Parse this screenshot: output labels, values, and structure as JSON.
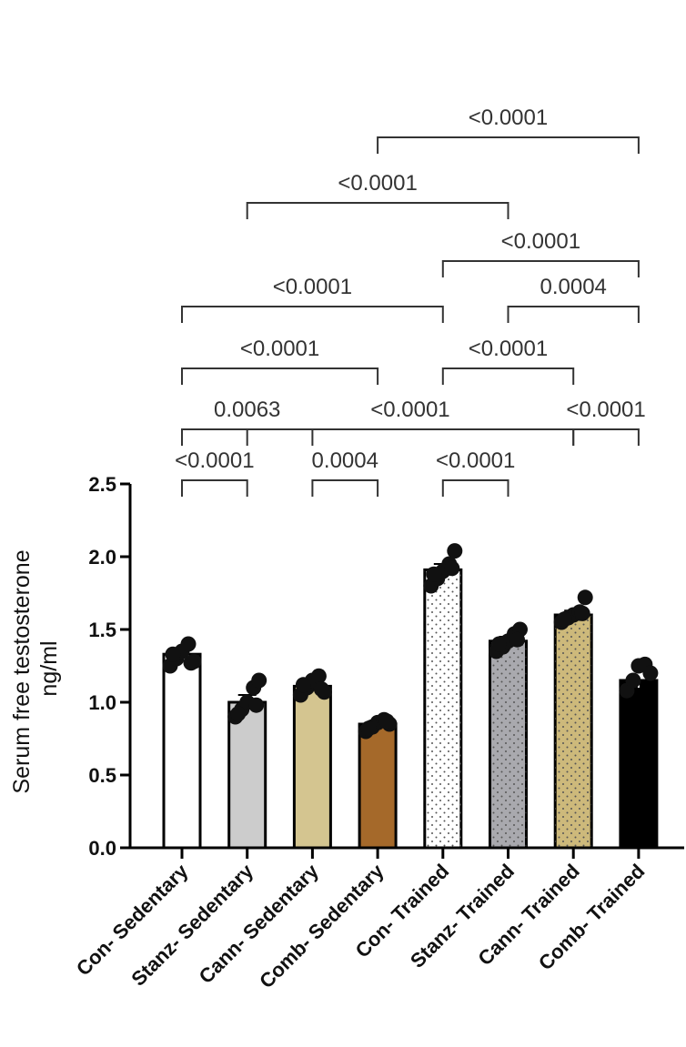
{
  "chart_data": {
    "type": "bar",
    "title": "",
    "ylabel": "Serum free testosterone\nng/ml",
    "xlabel": "",
    "ylim": [
      0,
      2.5
    ],
    "yticks": [
      "0.0",
      "0.5",
      "1.0",
      "1.5",
      "2.0",
      "2.5"
    ],
    "yticks_values": [
      0,
      0.5,
      1.0,
      1.5,
      2.0,
      2.5
    ],
    "categories": [
      "Con- Sedentary",
      "Stanz- Sedentary",
      "Cann- Sedentary",
      "Comb- Sedentary",
      "Con- Trained",
      "Stanz- Trained",
      "Cann- Trained",
      "Comb- Trained"
    ],
    "values": [
      1.33,
      1.0,
      1.11,
      0.85,
      1.91,
      1.42,
      1.6,
      1.15
    ],
    "sem": [
      0.04,
      0.05,
      0.04,
      0.02,
      0.04,
      0.03,
      0.03,
      0.05
    ],
    "fills": [
      "#ffffff",
      "#cccccc",
      "#d4c590",
      "#a5692a",
      "#ffffff",
      "#a9a9ae",
      "#cdb97b",
      "#000000"
    ],
    "patterns": [
      "none",
      "none",
      "none",
      "none",
      "dots",
      "dots",
      "dots",
      "none"
    ],
    "points": [
      [
        1.25,
        1.3,
        1.35,
        1.4,
        1.28,
        1.33,
        1.27
      ],
      [
        0.9,
        0.95,
        1.0,
        1.1,
        1.15,
        0.92,
        0.98
      ],
      [
        1.05,
        1.1,
        1.15,
        1.18,
        1.07,
        1.12,
        1.09
      ],
      [
        0.8,
        0.83,
        0.86,
        0.88,
        0.85,
        0.82,
        0.87
      ],
      [
        1.8,
        1.85,
        1.9,
        1.95,
        2.04,
        1.88,
        1.92
      ],
      [
        1.35,
        1.38,
        1.42,
        1.47,
        1.5,
        1.4,
        1.43
      ],
      [
        1.55,
        1.58,
        1.6,
        1.62,
        1.72,
        1.57,
        1.61
      ],
      [
        1.08,
        1.15,
        1.25,
        1.26,
        1.2
      ]
    ],
    "comparisons": [
      {
        "a": 0,
        "b": 1,
        "p": "<0.0001"
      },
      {
        "a": 2,
        "b": 3,
        "p": "0.0004"
      },
      {
        "a": 4,
        "b": 5,
        "p": "<0.0001"
      },
      {
        "a": 0,
        "b": 2,
        "p": "0.0063"
      },
      {
        "a": 1,
        "b": 6,
        "p": "<0.0001"
      },
      {
        "a": 6,
        "b": 7,
        "p": "<0.0001"
      },
      {
        "a": 0,
        "b": 3,
        "p": "<0.0001"
      },
      {
        "a": 4,
        "b": 6,
        "p": "<0.0001"
      },
      {
        "a": 0,
        "b": 4,
        "p": "<0.0001"
      },
      {
        "a": 5,
        "b": 7,
        "p": "0.0004"
      },
      {
        "a": 4,
        "b": 7,
        "p": "<0.0001"
      },
      {
        "a": 1,
        "b": 5,
        "p": "<0.0001"
      },
      {
        "a": 3,
        "b": 7,
        "p": "<0.0001"
      }
    ]
  }
}
